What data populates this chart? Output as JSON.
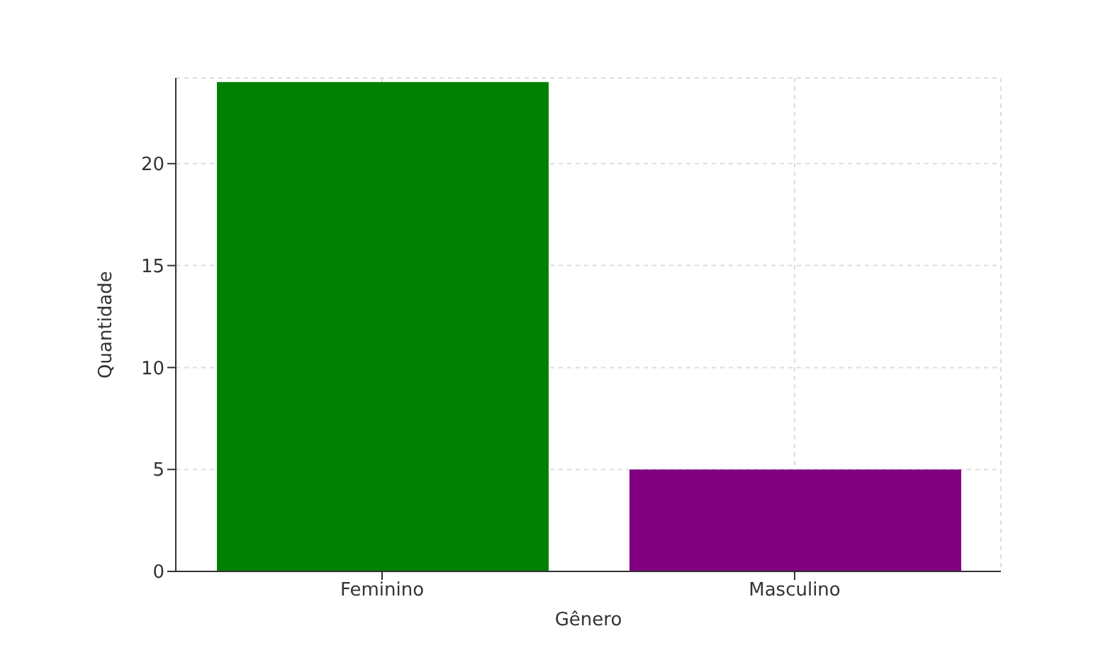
{
  "chart_data": {
    "type": "bar",
    "xlabel": "Gênero",
    "ylabel": "Quantidade",
    "categories": [
      "Feminino",
      "Masculino"
    ],
    "values": [
      24,
      5
    ],
    "colors": [
      "#008000",
      "#800080"
    ],
    "ylim": [
      0,
      24.2
    ],
    "yticks": [
      0,
      5,
      10,
      15,
      20
    ],
    "grid": true
  }
}
